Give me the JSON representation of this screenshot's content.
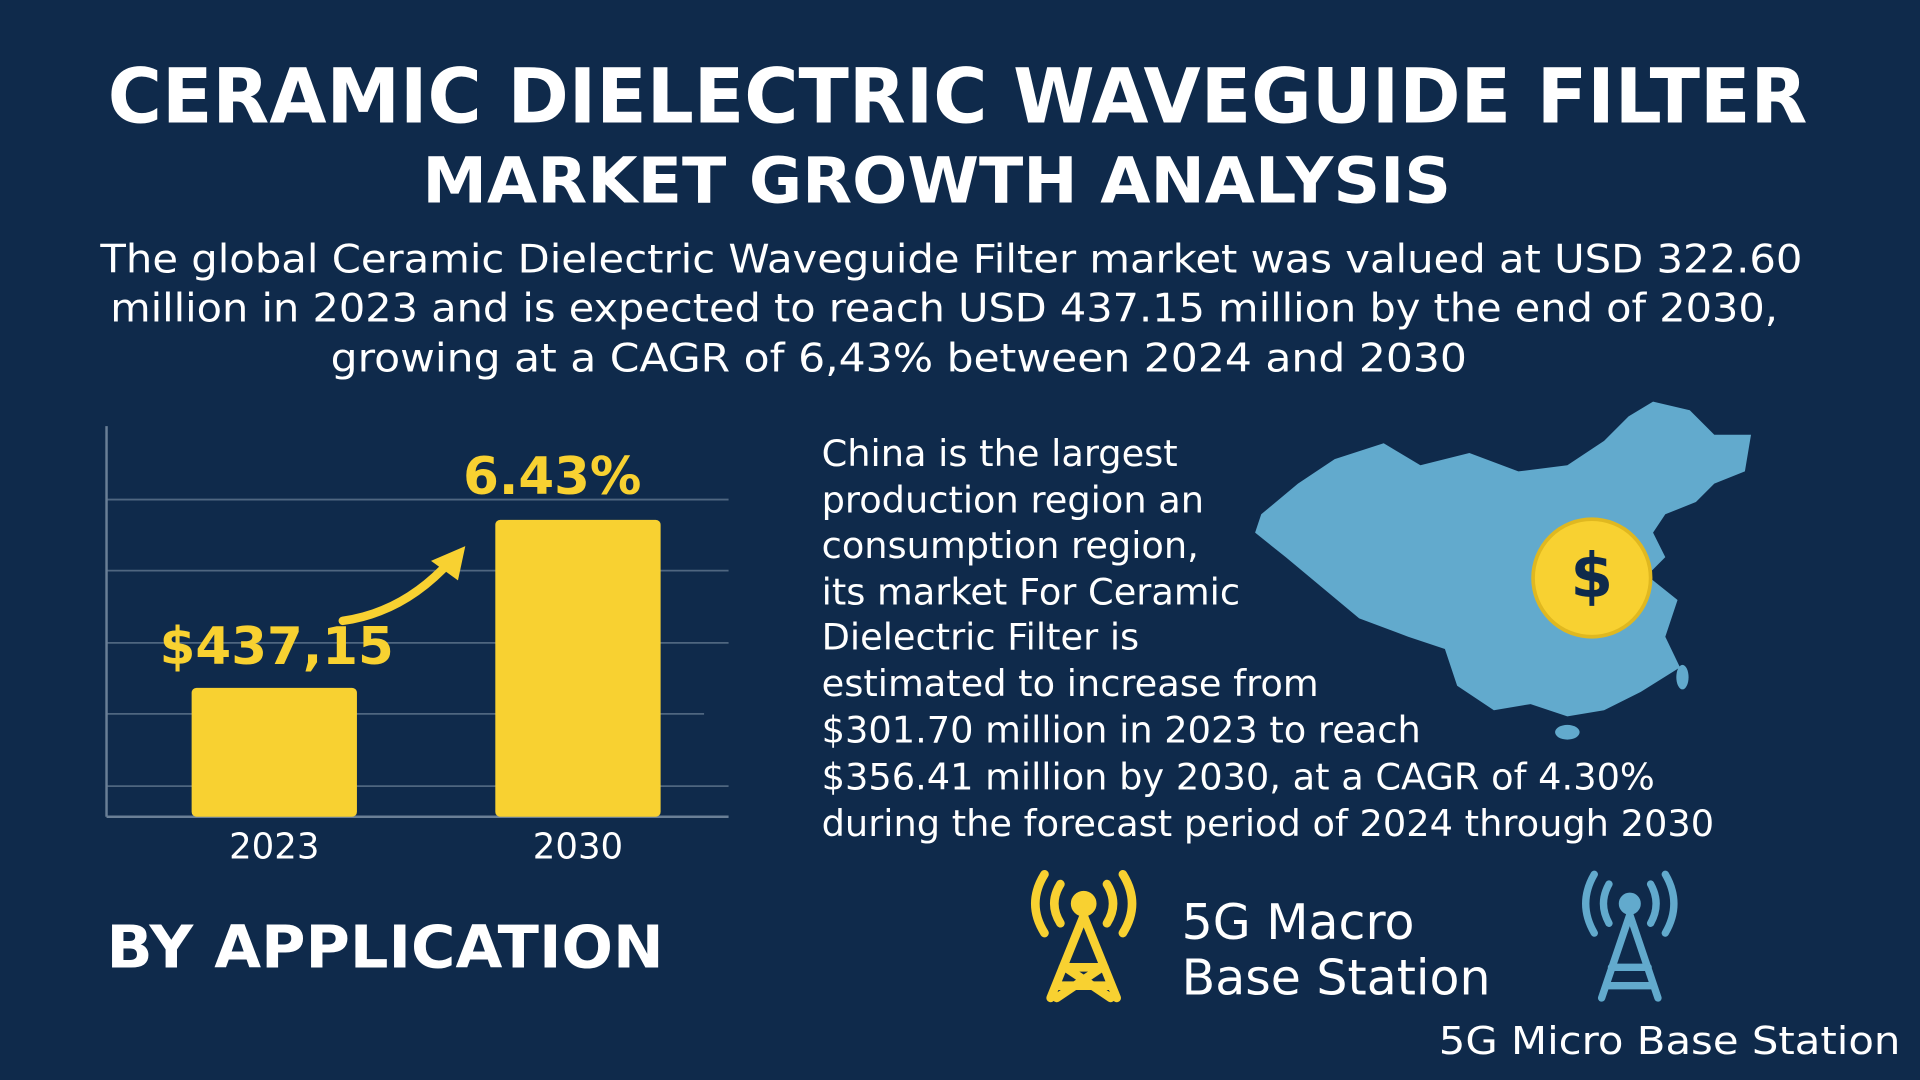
{
  "header": {
    "title_lines": [
      "CERAMIC DIELECTRIC WAVEGUIDE FILTER",
      "MARKET GROWTH ANALYSIS"
    ],
    "subtitle_lines": [
      "The global Ceramic Dielectric Waveguide Filter market was valued at USD 322.60",
      "million in 2023 and is expected to reach USD 437.15 million by the end of 2030,",
      "growing at a CAGR of 6,43% between 2024 and 2030"
    ]
  },
  "chart_data": {
    "type": "bar",
    "categories": [
      "2023",
      "2030"
    ],
    "values": [
      33,
      76
    ],
    "color": "#f8d131",
    "ylim": [
      0,
      100
    ],
    "annotations": [
      "$437,15",
      "6.43%"
    ]
  },
  "region": {
    "lines": [
      "China is the largest",
      "production region an",
      "consumption region,",
      "its market For Ceramic",
      "Dielectric Filter is",
      "estimated to increase from",
      "$301.70 million in 2023 to reach",
      "$356.41 million by 2030, at a CAGR of 4.30%",
      "during the forecast period of 2024 through 2030"
    ],
    "icon": "$"
  },
  "applications": {
    "heading": "BY APPLICATION",
    "items": [
      [
        "5G Macro",
        "Base Station"
      ],
      [
        "5G Micro Base Station"
      ]
    ]
  }
}
